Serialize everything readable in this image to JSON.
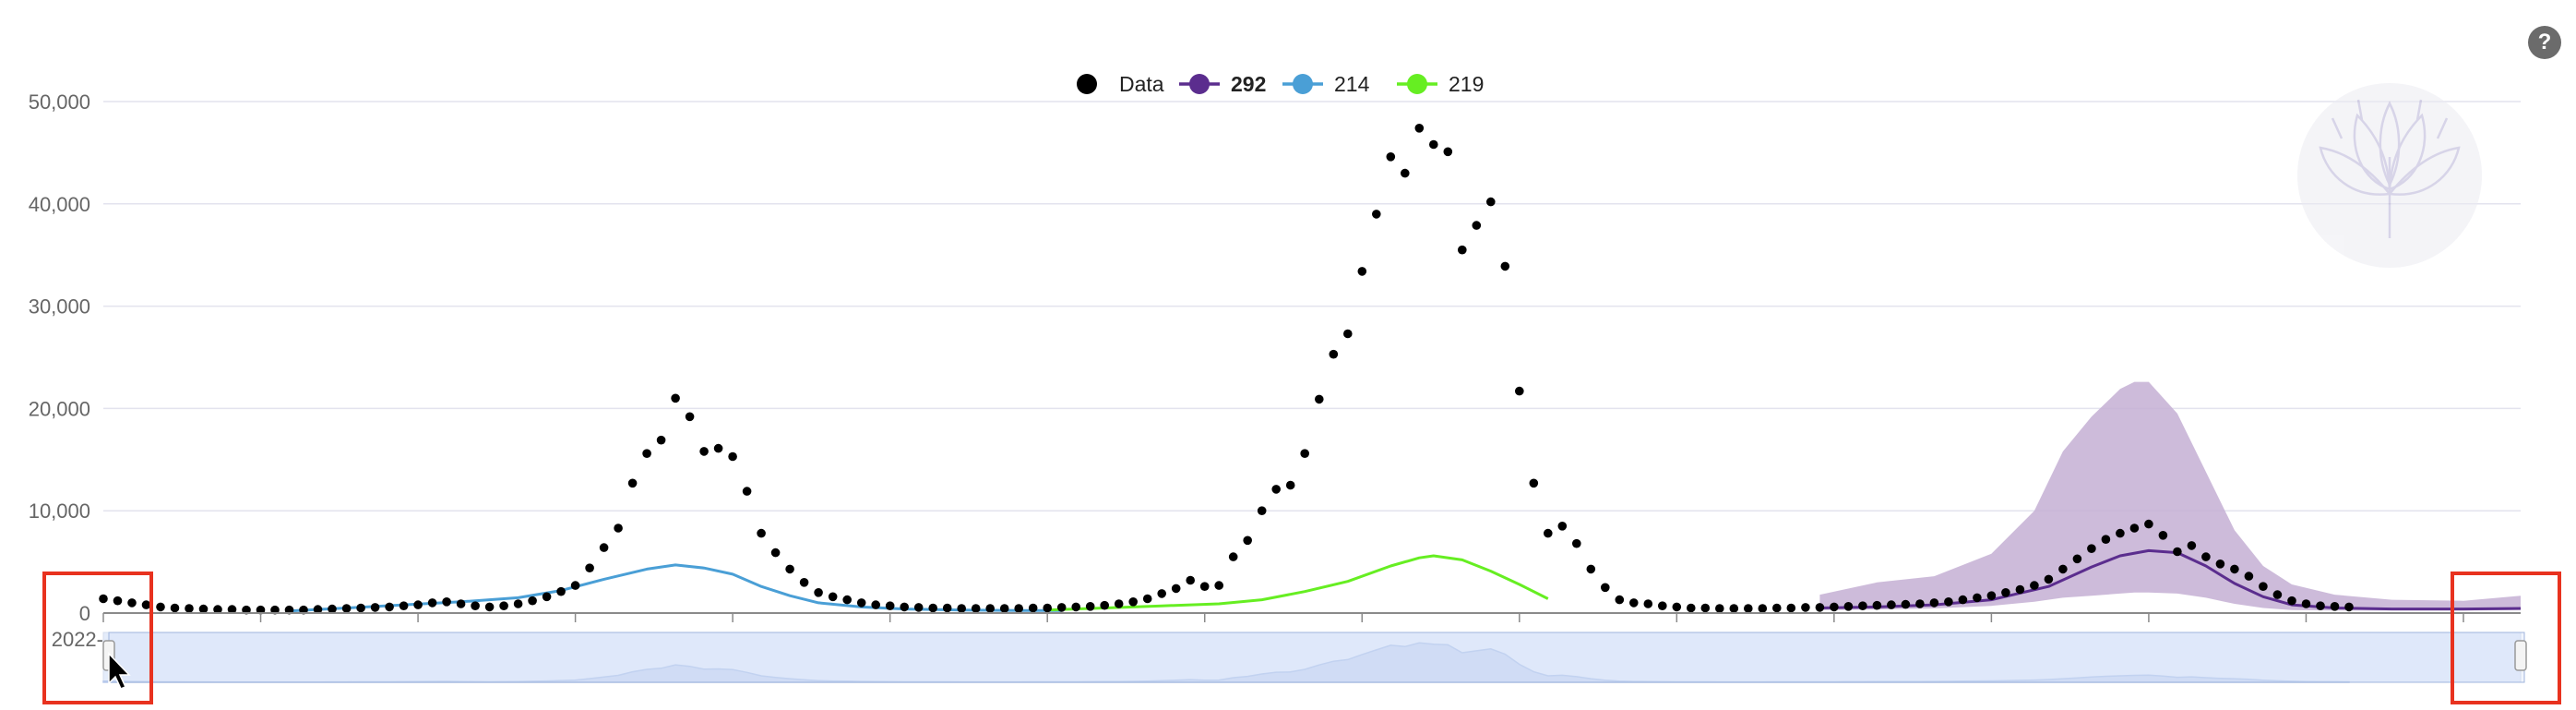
{
  "help_button": {
    "label": "?"
  },
  "legend": [
    {
      "label": "Data",
      "color": "#000000",
      "bold": false
    },
    {
      "label": "292",
      "color": "#5b2d8e",
      "bold": true
    },
    {
      "label": "214",
      "color": "#4a9fd6",
      "bold": false
    },
    {
      "label": "219",
      "color": "#66ee22",
      "bold": false
    }
  ],
  "chart_data": {
    "type": "line",
    "title": "",
    "xlabel": "",
    "ylabel": "",
    "x_type": "date",
    "xlim": [
      "2022-06-26",
      "2025-09-21"
    ],
    "ylim": [
      0,
      50000
    ],
    "yticks": [
      0,
      10000,
      20000,
      30000,
      40000,
      50000
    ],
    "ytick_labels": [
      "0",
      "10,000",
      "20,000",
      "30,000",
      "40,000",
      "50,000"
    ],
    "xticks": [
      "2022-06-26",
      "2022-09-11",
      "2022-11-27",
      "2023-02-12",
      "2023-04-30",
      "2023-07-16",
      "2023-10-01",
      "2023-12-17",
      "2024-03-03",
      "2024-05-19",
      "2024-08-04",
      "2024-10-20",
      "2025-01-05",
      "2025-03-23",
      "2025-06-08",
      "2025-08-24"
    ],
    "grid": "horizontal",
    "legend_position": "top-center",
    "range_selector": {
      "selected_start": "2022-06-26",
      "selected_end": "2025-09-21"
    },
    "series": [
      {
        "name": "Data",
        "kind": "scatter",
        "color": "#000000",
        "points": [
          [
            "2022-06-26",
            1400
          ],
          [
            "2022-07-03",
            1200
          ],
          [
            "2022-07-10",
            1000
          ],
          [
            "2022-07-17",
            800
          ],
          [
            "2022-07-24",
            600
          ],
          [
            "2022-07-31",
            500
          ],
          [
            "2022-08-07",
            450
          ],
          [
            "2022-08-14",
            400
          ],
          [
            "2022-08-21",
            350
          ],
          [
            "2022-08-28",
            350
          ],
          [
            "2022-09-04",
            300
          ],
          [
            "2022-09-11",
            300
          ],
          [
            "2022-09-18",
            300
          ],
          [
            "2022-09-25",
            300
          ],
          [
            "2022-10-02",
            300
          ],
          [
            "2022-10-09",
            350
          ],
          [
            "2022-10-16",
            400
          ],
          [
            "2022-10-23",
            450
          ],
          [
            "2022-10-30",
            500
          ],
          [
            "2022-11-06",
            550
          ],
          [
            "2022-11-13",
            600
          ],
          [
            "2022-11-20",
            700
          ],
          [
            "2022-11-27",
            800
          ],
          [
            "2022-12-04",
            1000
          ],
          [
            "2022-12-11",
            1100
          ],
          [
            "2022-12-18",
            900
          ],
          [
            "2022-12-25",
            700
          ],
          [
            "2023-01-01",
            600
          ],
          [
            "2023-01-08",
            700
          ],
          [
            "2023-01-15",
            900
          ],
          [
            "2023-01-22",
            1200
          ],
          [
            "2023-01-29",
            1600
          ],
          [
            "2023-02-05",
            2100
          ],
          [
            "2023-02-12",
            2700
          ],
          [
            "2023-02-19",
            4400
          ],
          [
            "2023-02-26",
            6400
          ],
          [
            "2023-03-05",
            8300
          ],
          [
            "2023-03-12",
            12700
          ],
          [
            "2023-03-19",
            15600
          ],
          [
            "2023-03-26",
            16900
          ],
          [
            "2023-04-02",
            21000
          ],
          [
            "2023-04-09",
            19200
          ],
          [
            "2023-04-16",
            15800
          ],
          [
            "2023-04-23",
            16100
          ],
          [
            "2023-04-30",
            15300
          ],
          [
            "2023-05-07",
            11900
          ],
          [
            "2023-05-14",
            7800
          ],
          [
            "2023-05-21",
            5900
          ],
          [
            "2023-05-28",
            4300
          ],
          [
            "2023-06-04",
            3000
          ],
          [
            "2023-06-11",
            2000
          ],
          [
            "2023-06-18",
            1600
          ],
          [
            "2023-06-25",
            1300
          ],
          [
            "2023-07-02",
            1000
          ],
          [
            "2023-07-09",
            800
          ],
          [
            "2023-07-16",
            700
          ],
          [
            "2023-07-23",
            600
          ],
          [
            "2023-07-30",
            550
          ],
          [
            "2023-08-06",
            500
          ],
          [
            "2023-08-13",
            500
          ],
          [
            "2023-08-20",
            450
          ],
          [
            "2023-08-27",
            450
          ],
          [
            "2023-09-03",
            450
          ],
          [
            "2023-09-10",
            450
          ],
          [
            "2023-09-17",
            450
          ],
          [
            "2023-09-24",
            500
          ],
          [
            "2023-10-01",
            500
          ],
          [
            "2023-10-08",
            550
          ],
          [
            "2023-10-15",
            600
          ],
          [
            "2023-10-22",
            650
          ],
          [
            "2023-10-29",
            750
          ],
          [
            "2023-11-05",
            900
          ],
          [
            "2023-11-12",
            1100
          ],
          [
            "2023-11-19",
            1400
          ],
          [
            "2023-11-26",
            1900
          ],
          [
            "2023-12-03",
            2400
          ],
          [
            "2023-12-10",
            3200
          ],
          [
            "2023-12-17",
            2600
          ],
          [
            "2023-12-24",
            2700
          ],
          [
            "2023-12-31",
            5500
          ],
          [
            "2024-01-07",
            7100
          ],
          [
            "2024-01-14",
            10000
          ],
          [
            "2024-01-21",
            12100
          ],
          [
            "2024-01-28",
            12500
          ],
          [
            "2024-02-04",
            15600
          ],
          [
            "2024-02-11",
            20900
          ],
          [
            "2024-02-18",
            25300
          ],
          [
            "2024-02-25",
            27300
          ],
          [
            "2024-03-03",
            33400
          ],
          [
            "2024-03-10",
            39000
          ],
          [
            "2024-03-17",
            44600
          ],
          [
            "2024-03-24",
            43000
          ],
          [
            "2024-03-31",
            47400
          ],
          [
            "2024-04-07",
            45800
          ],
          [
            "2024-04-14",
            45100
          ],
          [
            "2024-04-21",
            35500
          ],
          [
            "2024-04-28",
            37900
          ],
          [
            "2024-05-05",
            40200
          ],
          [
            "2024-05-12",
            33900
          ],
          [
            "2024-05-19",
            21700
          ],
          [
            "2024-05-26",
            12700
          ],
          [
            "2024-06-02",
            7800
          ],
          [
            "2024-06-09",
            8500
          ],
          [
            "2024-06-16",
            6800
          ],
          [
            "2024-06-23",
            4300
          ],
          [
            "2024-06-30",
            2500
          ],
          [
            "2024-07-07",
            1300
          ],
          [
            "2024-07-14",
            1000
          ],
          [
            "2024-07-21",
            900
          ],
          [
            "2024-07-28",
            700
          ],
          [
            "2024-08-04",
            600
          ],
          [
            "2024-08-11",
            500
          ],
          [
            "2024-08-18",
            500
          ],
          [
            "2024-08-25",
            450
          ],
          [
            "2024-09-01",
            450
          ],
          [
            "2024-09-08",
            450
          ],
          [
            "2024-09-15",
            450
          ],
          [
            "2024-09-22",
            500
          ],
          [
            "2024-09-29",
            500
          ],
          [
            "2024-10-06",
            550
          ],
          [
            "2024-10-13",
            550
          ],
          [
            "2024-10-20",
            600
          ],
          [
            "2024-10-27",
            650
          ],
          [
            "2024-11-03",
            700
          ],
          [
            "2024-11-10",
            750
          ],
          [
            "2024-11-17",
            800
          ],
          [
            "2024-11-24",
            850
          ],
          [
            "2024-12-01",
            900
          ],
          [
            "2024-12-08",
            1000
          ],
          [
            "2024-12-15",
            1100
          ],
          [
            "2024-12-22",
            1300
          ],
          [
            "2024-12-29",
            1500
          ],
          [
            "2025-01-05",
            1700
          ],
          [
            "2025-01-12",
            2000
          ],
          [
            "2025-01-19",
            2300
          ],
          [
            "2025-01-26",
            2700
          ],
          [
            "2025-02-02",
            3300
          ],
          [
            "2025-02-09",
            4300
          ],
          [
            "2025-02-16",
            5300
          ],
          [
            "2025-02-23",
            6300
          ],
          [
            "2025-03-02",
            7200
          ],
          [
            "2025-03-09",
            7800
          ],
          [
            "2025-03-16",
            8300
          ],
          [
            "2025-03-23",
            8700
          ],
          [
            "2025-03-30",
            7600
          ],
          [
            "2025-04-06",
            6000
          ],
          [
            "2025-04-13",
            6600
          ],
          [
            "2025-04-20",
            5500
          ],
          [
            "2025-04-27",
            4800
          ],
          [
            "2025-05-04",
            4300
          ],
          [
            "2025-05-11",
            3600
          ],
          [
            "2025-05-18",
            2600
          ],
          [
            "2025-05-25",
            1800
          ],
          [
            "2025-06-01",
            1200
          ],
          [
            "2025-06-08",
            900
          ],
          [
            "2025-06-15",
            700
          ],
          [
            "2025-06-22",
            650
          ],
          [
            "2025-06-29",
            600
          ]
        ]
      },
      {
        "name": "214",
        "kind": "line",
        "color": "#4a9fd6",
        "points": [
          [
            "2022-09-25",
            200
          ],
          [
            "2022-10-23",
            500
          ],
          [
            "2022-11-20",
            800
          ],
          [
            "2022-12-18",
            1100
          ],
          [
            "2023-01-15",
            1500
          ],
          [
            "2023-02-05",
            2200
          ],
          [
            "2023-02-26",
            3300
          ],
          [
            "2023-03-19",
            4300
          ],
          [
            "2023-04-02",
            4700
          ],
          [
            "2023-04-16",
            4400
          ],
          [
            "2023-04-30",
            3800
          ],
          [
            "2023-05-14",
            2600
          ],
          [
            "2023-05-28",
            1700
          ],
          [
            "2023-06-11",
            1000
          ],
          [
            "2023-07-02",
            600
          ],
          [
            "2023-07-23",
            400
          ],
          [
            "2023-08-20",
            300
          ],
          [
            "2023-09-17",
            250
          ],
          [
            "2023-10-08",
            250
          ]
        ]
      },
      {
        "name": "219",
        "kind": "line",
        "color": "#66ee22",
        "points": [
          [
            "2023-10-01",
            300
          ],
          [
            "2023-10-29",
            500
          ],
          [
            "2023-11-26",
            700
          ],
          [
            "2023-12-24",
            900
          ],
          [
            "2024-01-14",
            1300
          ],
          [
            "2024-02-04",
            2100
          ],
          [
            "2024-02-25",
            3100
          ],
          [
            "2024-03-17",
            4600
          ],
          [
            "2024-03-31",
            5400
          ],
          [
            "2024-04-07",
            5600
          ],
          [
            "2024-04-21",
            5200
          ],
          [
            "2024-05-05",
            4100
          ],
          [
            "2024-05-19",
            2800
          ],
          [
            "2024-06-02",
            1400
          ]
        ]
      },
      {
        "name": "292",
        "kind": "line_with_band",
        "color": "#5b2d8e",
        "band_color": "#c4afd3",
        "points": [
          [
            "2024-10-13",
            500
          ],
          [
            "2024-11-10",
            600
          ],
          [
            "2024-12-08",
            800
          ],
          [
            "2025-01-05",
            1300
          ],
          [
            "2025-02-02",
            2600
          ],
          [
            "2025-02-23",
            4500
          ],
          [
            "2025-03-09",
            5600
          ],
          [
            "2025-03-23",
            6100
          ],
          [
            "2025-04-06",
            5900
          ],
          [
            "2025-04-20",
            4600
          ],
          [
            "2025-05-04",
            2900
          ],
          [
            "2025-05-18",
            1600
          ],
          [
            "2025-06-01",
            800
          ],
          [
            "2025-06-22",
            500
          ],
          [
            "2025-07-20",
            400
          ],
          [
            "2025-08-24",
            400
          ],
          [
            "2025-09-21",
            450
          ]
        ],
        "band": [
          [
            "2024-10-13",
            300,
            1800
          ],
          [
            "2024-11-10",
            350,
            3000
          ],
          [
            "2024-12-08",
            450,
            3600
          ],
          [
            "2025-01-05",
            700,
            5800
          ],
          [
            "2025-01-26",
            1100,
            10000
          ],
          [
            "2025-02-09",
            1500,
            15800
          ],
          [
            "2025-02-23",
            1700,
            19200
          ],
          [
            "2025-03-09",
            1900,
            21900
          ],
          [
            "2025-03-16",
            2000,
            22600
          ],
          [
            "2025-03-23",
            2000,
            22600
          ],
          [
            "2025-04-06",
            1900,
            19500
          ],
          [
            "2025-04-20",
            1500,
            13800
          ],
          [
            "2025-05-04",
            900,
            8100
          ],
          [
            "2025-05-18",
            500,
            4600
          ],
          [
            "2025-06-01",
            300,
            2800
          ],
          [
            "2025-06-22",
            250,
            1800
          ],
          [
            "2025-07-20",
            250,
            1300
          ],
          [
            "2025-08-24",
            250,
            1200
          ],
          [
            "2025-09-21",
            300,
            1700
          ]
        ]
      }
    ]
  }
}
